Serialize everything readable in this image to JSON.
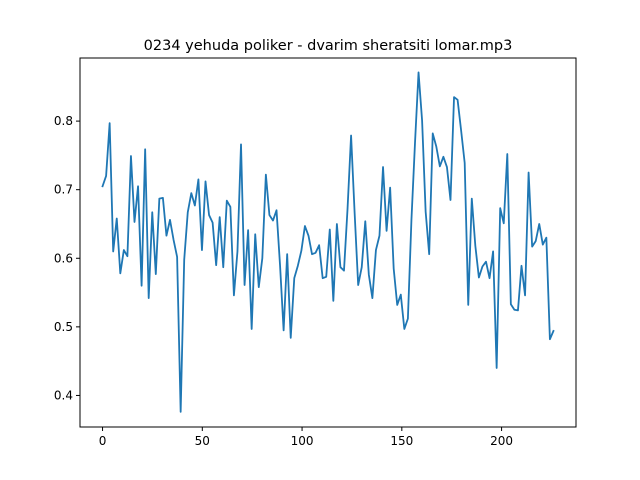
{
  "chart_data": {
    "type": "line",
    "title": "0234 yehuda poliker - dvarim sheratsiti lomar.mp3",
    "xlabel": "",
    "ylabel": "",
    "xlim": [
      -11.3,
      237.3
    ],
    "ylim": [
      0.354,
      0.892
    ],
    "xticks": [
      0,
      50,
      100,
      150,
      200
    ],
    "yticks": [
      0.4,
      0.5,
      0.6,
      0.7,
      0.8
    ],
    "xtick_labels": [
      "0",
      "50",
      "100",
      "150",
      "200"
    ],
    "ytick_labels": [
      "0.4",
      "0.5",
      "0.6",
      "0.7",
      "0.8"
    ],
    "grid": false,
    "series": [
      {
        "color": "#1f77b4",
        "x_start": 0,
        "x_step": 1,
        "values": [
          0.705,
          0.72,
          0.797,
          0.61,
          0.658,
          0.578,
          0.612,
          0.603,
          0.749,
          0.653,
          0.705,
          0.56,
          0.759,
          0.542,
          0.667,
          0.577,
          0.687,
          0.688,
          0.633,
          0.656,
          0.627,
          0.602,
          0.376,
          0.598,
          0.667,
          0.695,
          0.677,
          0.715,
          0.612,
          0.712,
          0.663,
          0.652,
          0.59,
          0.66,
          0.587,
          0.684,
          0.675,
          0.546,
          0.61,
          0.766,
          0.561,
          0.641,
          0.497,
          0.635,
          0.558,
          0.6,
          0.722,
          0.663,
          0.655,
          0.67,
          0.589,
          0.495,
          0.606,
          0.484,
          0.571,
          0.589,
          0.611,
          0.647,
          0.633,
          0.606,
          0.608,
          0.619,
          0.571,
          0.573,
          0.642,
          0.538,
          0.65,
          0.587,
          0.582,
          0.672,
          0.779,
          0.666,
          0.561,
          0.587,
          0.654,
          0.576,
          0.542,
          0.612,
          0.633,
          0.733,
          0.64,
          0.703,
          0.585,
          0.532,
          0.547,
          0.497,
          0.512,
          0.656,
          0.768,
          0.871,
          0.801,
          0.668,
          0.606,
          0.782,
          0.763,
          0.734,
          0.748,
          0.733,
          0.685,
          0.835,
          0.831,
          0.786,
          0.739,
          0.532,
          0.687,
          0.618,
          0.572,
          0.588,
          0.595,
          0.571,
          0.61,
          0.44,
          0.673,
          0.651,
          0.752,
          0.533,
          0.525,
          0.524,
          0.589,
          0.546,
          0.725,
          0.617,
          0.625,
          0.65,
          0.62,
          0.63,
          0.482,
          0.494
        ],
        "values_note_x": "values plotted at x = 0..227, sampled every ~1.8 units"
      }
    ]
  }
}
